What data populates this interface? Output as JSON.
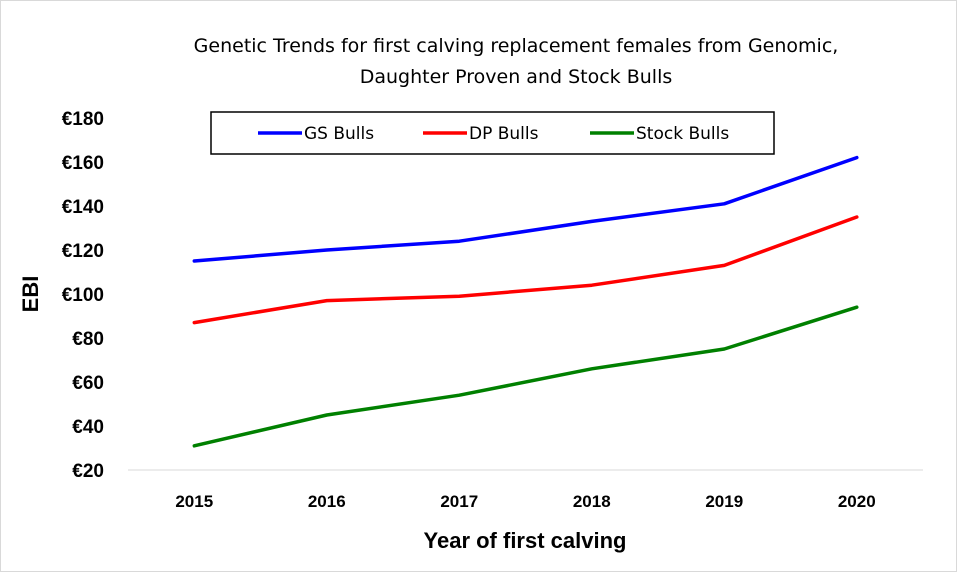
{
  "chart_data": {
    "type": "line",
    "title_lines": [
      "Genetic Trends for first calving replacement females from Genomic,",
      "Daughter Proven and Stock Bulls"
    ],
    "xlabel": "Year of first calving",
    "ylabel": "EBI",
    "categories": [
      "2015",
      "2016",
      "2017",
      "2018",
      "2019",
      "2020"
    ],
    "y_ticks": [
      "€20",
      "€40",
      "€60",
      "€80",
      "€100",
      "€120",
      "€140",
      "€160",
      "€180"
    ],
    "ylim": [
      20,
      180
    ],
    "grid": false,
    "legend_position": "top",
    "series": [
      {
        "name": "GS Bulls",
        "color": "#0000ff",
        "values": [
          115,
          120,
          124,
          133,
          141,
          162
        ]
      },
      {
        "name": "DP Bulls",
        "color": "#ff0000",
        "values": [
          87,
          97,
          99,
          104,
          113,
          135
        ]
      },
      {
        "name": "Stock Bulls",
        "color": "#008000",
        "values": [
          31,
          45,
          54,
          66,
          75,
          94
        ]
      }
    ]
  }
}
